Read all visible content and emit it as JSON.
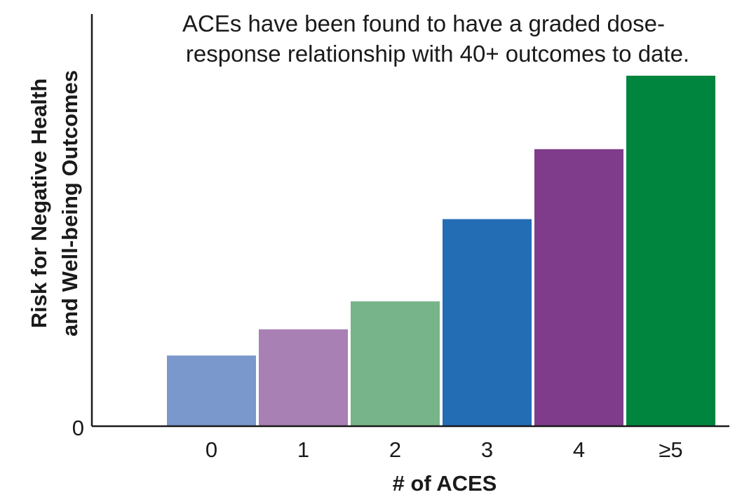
{
  "chart_data": {
    "type": "bar",
    "title_lines": [
      "ACEs have been found to have a graded dose-",
      "response relationship with 40+ outcomes to date."
    ],
    "ylabel_lines": [
      "Risk for Negative Health",
      "and Well-being Outcomes"
    ],
    "xlabel": "# of ACES",
    "y_origin_label": "0",
    "categories": [
      "0",
      "1",
      "2",
      "3",
      "4",
      "≥5"
    ],
    "values": [
      0.2,
      0.275,
      0.355,
      0.59,
      0.79,
      1.0
    ],
    "colors": [
      "#7b98cc",
      "#a880b4",
      "#78b48a",
      "#236db5",
      "#7e3c8a",
      "#00853e"
    ],
    "ylim": [
      0,
      1.0
    ],
    "grid": false,
    "legend": "none"
  }
}
